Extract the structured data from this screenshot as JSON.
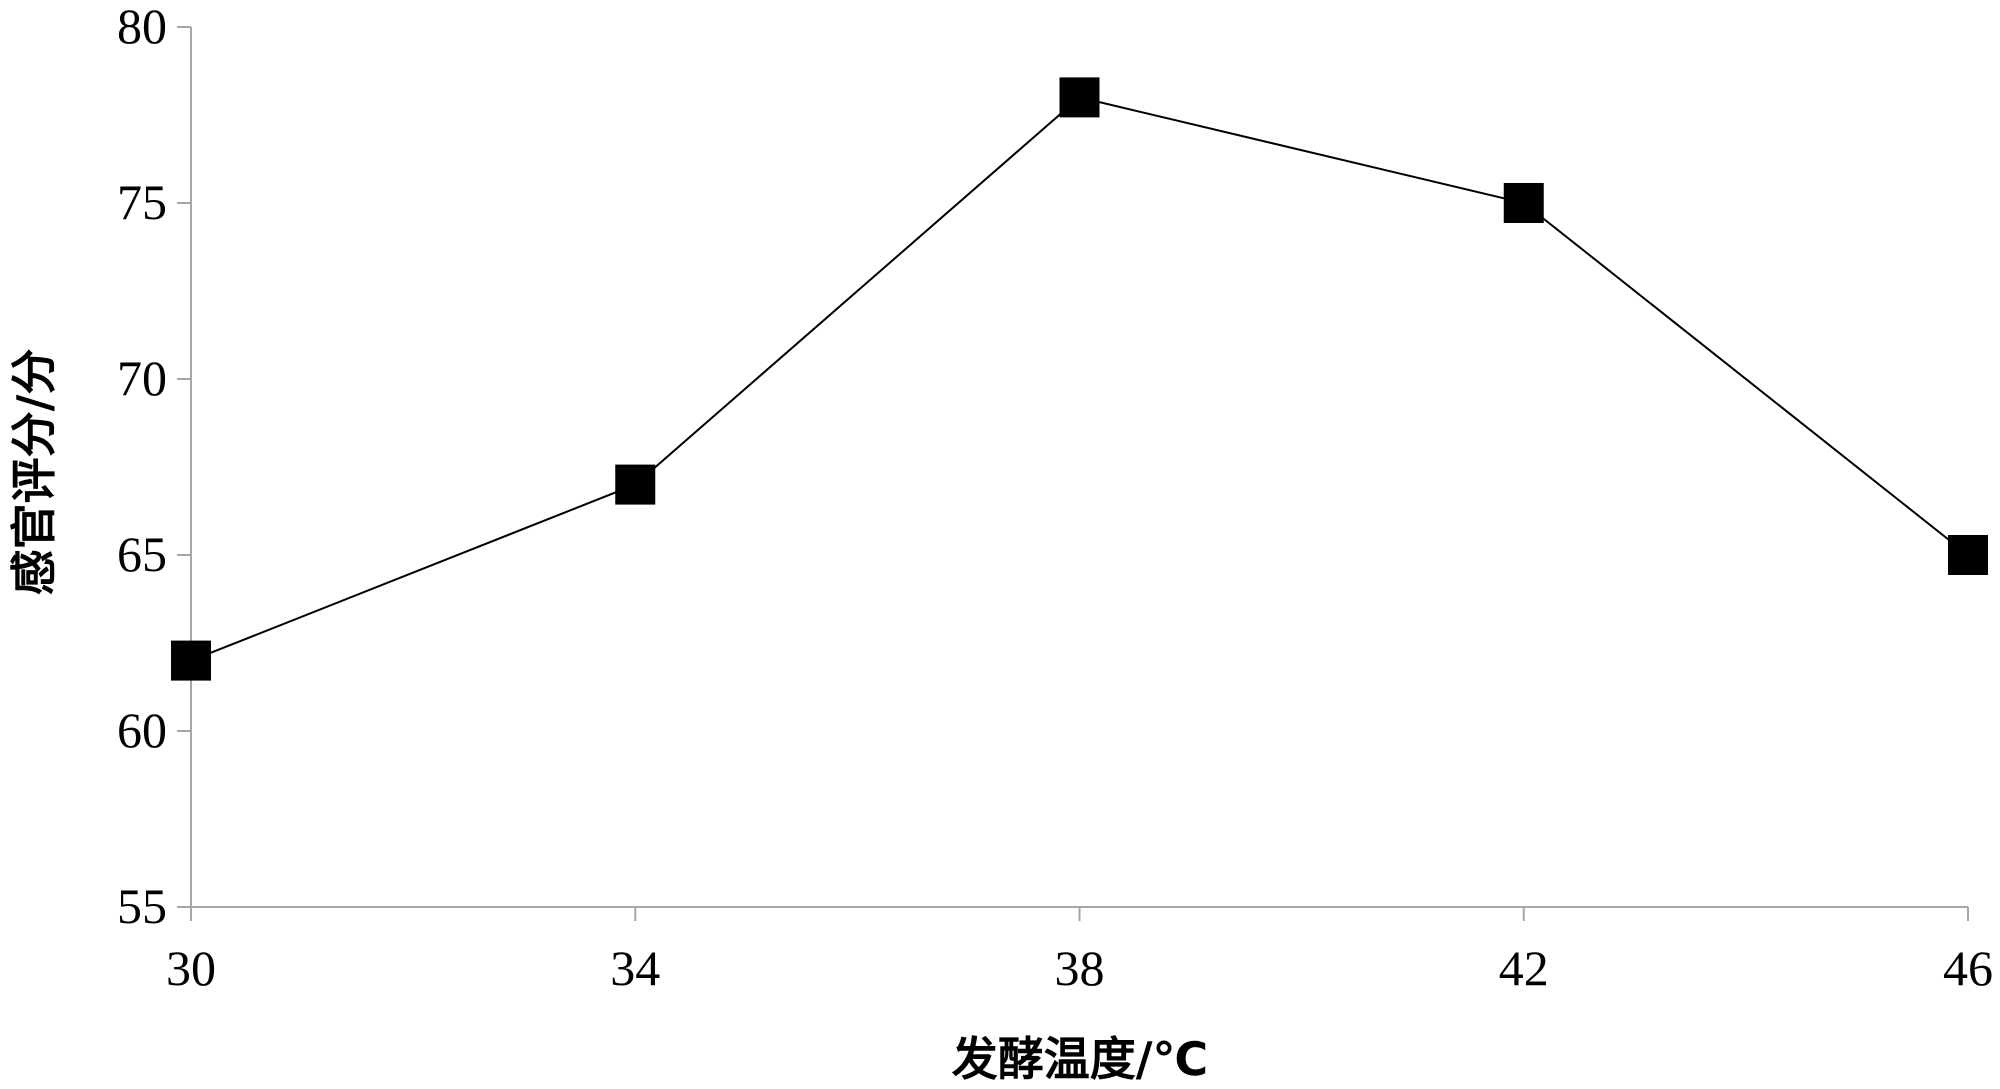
{
  "chart_data": {
    "type": "line",
    "title": "",
    "xlabel": "发酵温度/℃",
    "ylabel": "感官评分/分",
    "x": [
      30,
      34,
      38,
      42,
      46
    ],
    "x_ticks": [
      "30",
      "34",
      "38",
      "42",
      "46"
    ],
    "y_ticks": [
      "55",
      "60",
      "65",
      "70",
      "75",
      "80"
    ],
    "xlim": [
      30,
      46
    ],
    "ylim": [
      55,
      80
    ],
    "grid": false,
    "legend": "none",
    "marker": "square",
    "series": [
      {
        "values": [
          62,
          67,
          78,
          75,
          65
        ],
        "color": "#000000"
      }
    ],
    "axis_color": "#a6a6a6"
  }
}
